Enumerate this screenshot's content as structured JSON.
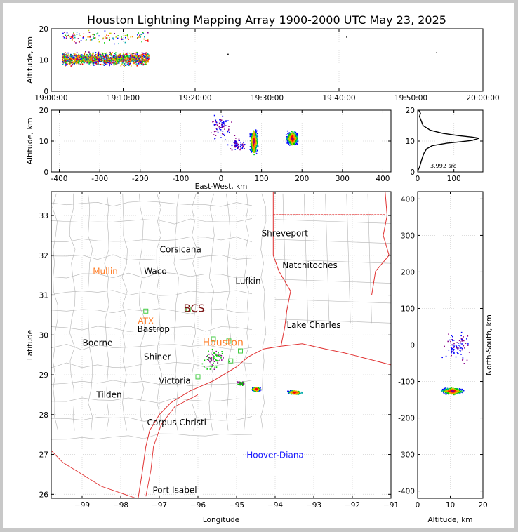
{
  "title": "Houston Lightning Mapping Array 1900-2000 UTC May 23, 2025",
  "colors": {
    "background": "#ffffff",
    "outer_border": "#c8c8c8",
    "coast_state_lines": "#e03030",
    "county_lines": "#b4b4b4",
    "label_default": "#000000",
    "label_orange": "#ff7f2a",
    "label_blue": "#1a1aff",
    "label_dark_red": "#7a1010",
    "station_marker": "#44cc44",
    "source_palette": [
      "#0000ff",
      "#00aaaa",
      "#00cc00",
      "#cccc00",
      "#ff8800",
      "#ff0000",
      "#880088"
    ]
  },
  "chart_data": [
    {
      "type": "scatter",
      "panel": "time-height",
      "ylabel": "Altitude, km",
      "ylim": [
        0,
        20
      ],
      "yticks": [
        "0",
        "10",
        "20"
      ],
      "xlim": [
        "19:00:00",
        "20:00:00"
      ],
      "xticks": [
        "19:00:00",
        "19:10:00",
        "19:20:00",
        "19:30:00",
        "19:40:00",
        "19:50:00",
        "20:00:00"
      ],
      "grid": true,
      "clusters": [
        {
          "t_start_min": 1.5,
          "t_end_min": 13.5,
          "alt_center": 10.5,
          "alt_spread": 2.0,
          "density": "high"
        },
        {
          "t_start_min": 1.5,
          "t_end_min": 13.5,
          "alt_center": 17.5,
          "alt_spread": 2.0,
          "density": "low"
        }
      ],
      "isolated_sources": [
        [
          24.5,
          12
        ],
        [
          41,
          17.5
        ],
        [
          53.5,
          12.5
        ]
      ]
    },
    {
      "type": "scatter",
      "panel": "east-west-height",
      "xlabel": "East-West, km",
      "ylabel": "Altitude, km",
      "xlim": [
        -420,
        420
      ],
      "ylim": [
        0,
        20
      ],
      "xticks": [
        "-400",
        "-300",
        "-200",
        "-100",
        "0",
        "100",
        "200",
        "300",
        "400"
      ],
      "yticks": [
        "0",
        "10",
        "20"
      ],
      "grid": true,
      "clusters": [
        {
          "x": 80,
          "x_spread": 8,
          "alt_center": 10,
          "alt_spread": 3.5,
          "density": "high"
        },
        {
          "x": 175,
          "x_spread": 12,
          "alt_center": 11,
          "alt_spread": 2,
          "density": "high"
        },
        {
          "x": 0,
          "x_spread": 25,
          "alt_center": 15,
          "alt_spread": 4,
          "density": "low"
        },
        {
          "x": 40,
          "x_spread": 20,
          "alt_center": 9,
          "alt_spread": 2,
          "density": "low"
        }
      ]
    },
    {
      "type": "line",
      "panel": "altitude-histogram",
      "xticks": [
        "0",
        "100"
      ],
      "yticks": [
        "0",
        "10",
        "20"
      ],
      "xlim": [
        0,
        180
      ],
      "ylim": [
        0,
        20
      ],
      "annotation": "3,992 src",
      "counts": [
        [
          0,
          0.3
        ],
        [
          5,
          1.5
        ],
        [
          10,
          3.5
        ],
        [
          14,
          5
        ],
        [
          18,
          6.2
        ],
        [
          25,
          7.5
        ],
        [
          40,
          8.5
        ],
        [
          80,
          9.3
        ],
        [
          120,
          9.8
        ],
        [
          150,
          10.2
        ],
        [
          160,
          10.6
        ],
        [
          170,
          10.9
        ],
        [
          150,
          11.3
        ],
        [
          110,
          11.8
        ],
        [
          70,
          12.5
        ],
        [
          35,
          13.5
        ],
        [
          15,
          15
        ],
        [
          10,
          16.5
        ],
        [
          5,
          18
        ],
        [
          8,
          19
        ],
        [
          3,
          20
        ]
      ]
    },
    {
      "type": "scatter",
      "panel": "plan-view-map",
      "xlabel": "Longitude",
      "ylabel": "Latitude",
      "xlim": [
        -99.8,
        -91
      ],
      "ylim": [
        25.9,
        33.6
      ],
      "xticks": [
        "−99",
        "−98",
        "−97",
        "−96",
        "−95",
        "−94",
        "−93",
        "−92",
        "−91"
      ],
      "yticks": [
        "26",
        "27",
        "28",
        "29",
        "30",
        "31",
        "32",
        "33"
      ],
      "grid": true,
      "cities": [
        {
          "name": "Shreveport",
          "lon": -93.75,
          "lat": 32.55,
          "color": "default"
        },
        {
          "name": "Corsicana",
          "lon": -96.45,
          "lat": 32.15,
          "color": "default"
        },
        {
          "name": "Natchitoches",
          "lon": -93.1,
          "lat": 31.75,
          "color": "default"
        },
        {
          "name": "Mullin",
          "lon": -98.4,
          "lat": 31.6,
          "color": "orange"
        },
        {
          "name": "Waco",
          "lon": -97.1,
          "lat": 31.6,
          "color": "default"
        },
        {
          "name": "Lufkin",
          "lon": -94.7,
          "lat": 31.35,
          "color": "default"
        },
        {
          "name": "BCS",
          "lon": -96.1,
          "lat": 30.65,
          "color": "dark_red"
        },
        {
          "name": "ATX",
          "lon": -97.35,
          "lat": 30.35,
          "color": "orange"
        },
        {
          "name": "Bastrop",
          "lon": -97.15,
          "lat": 30.15,
          "color": "default"
        },
        {
          "name": "Lake Charles",
          "lon": -93.0,
          "lat": 30.25,
          "color": "default"
        },
        {
          "name": "Boerne",
          "lon": -98.6,
          "lat": 29.8,
          "color": "default"
        },
        {
          "name": "Houston",
          "lon": -95.35,
          "lat": 29.8,
          "color": "orange"
        },
        {
          "name": "Shiner",
          "lon": -97.05,
          "lat": 29.45,
          "color": "default"
        },
        {
          "name": "Victoria",
          "lon": -96.6,
          "lat": 28.85,
          "color": "default"
        },
        {
          "name": "Tilden",
          "lon": -98.3,
          "lat": 28.5,
          "color": "default"
        },
        {
          "name": "Corpus Christi",
          "lon": -96.55,
          "lat": 27.8,
          "color": "default"
        },
        {
          "name": "Hoover-Diana",
          "lon": -94.0,
          "lat": 26.98,
          "color": "blue"
        },
        {
          "name": "Port Isabel",
          "lon": -96.6,
          "lat": 26.1,
          "color": "default"
        }
      ],
      "stations": [
        [
          -97.35,
          30.6
        ],
        [
          -96.25,
          30.65
        ],
        [
          -96.0,
          28.95
        ],
        [
          -95.6,
          29.9
        ],
        [
          -95.2,
          29.85
        ],
        [
          -95.15,
          29.35
        ],
        [
          -94.9,
          29.6
        ]
      ],
      "clusters": [
        {
          "lon": -94.5,
          "lat": 28.65,
          "lon_spread": 0.12,
          "lat_spread": 0.05,
          "density": "high"
        },
        {
          "lon": -93.5,
          "lat": 28.57,
          "lon_spread": 0.18,
          "lat_spread": 0.05,
          "density": "high"
        },
        {
          "lon": -95.6,
          "lat": 29.4,
          "lon_spread": 0.35,
          "lat_spread": 0.3,
          "density": "low"
        },
        {
          "lon": -94.9,
          "lat": 28.8,
          "lon_spread": 0.1,
          "lat_spread": 0.05,
          "density": "low"
        }
      ]
    },
    {
      "type": "scatter",
      "panel": "altitude-north-south",
      "xlabel": "Altitude, km",
      "ylabel": "North-South, km",
      "xlim": [
        0,
        20
      ],
      "ylim": [
        -420,
        420
      ],
      "xticks": [
        "0",
        "10",
        "20"
      ],
      "yticks": [
        "-400",
        "-300",
        "-200",
        "-100",
        "0",
        "100",
        "200",
        "300",
        "400"
      ],
      "grid": true,
      "clusters": [
        {
          "alt_center": 10.5,
          "alt_spread": 3,
          "y": -125,
          "y_spread": 8,
          "density": "high"
        },
        {
          "alt_center": 12,
          "alt_spread": 4,
          "y": 0,
          "y_spread": 40,
          "density": "low"
        }
      ]
    }
  ]
}
